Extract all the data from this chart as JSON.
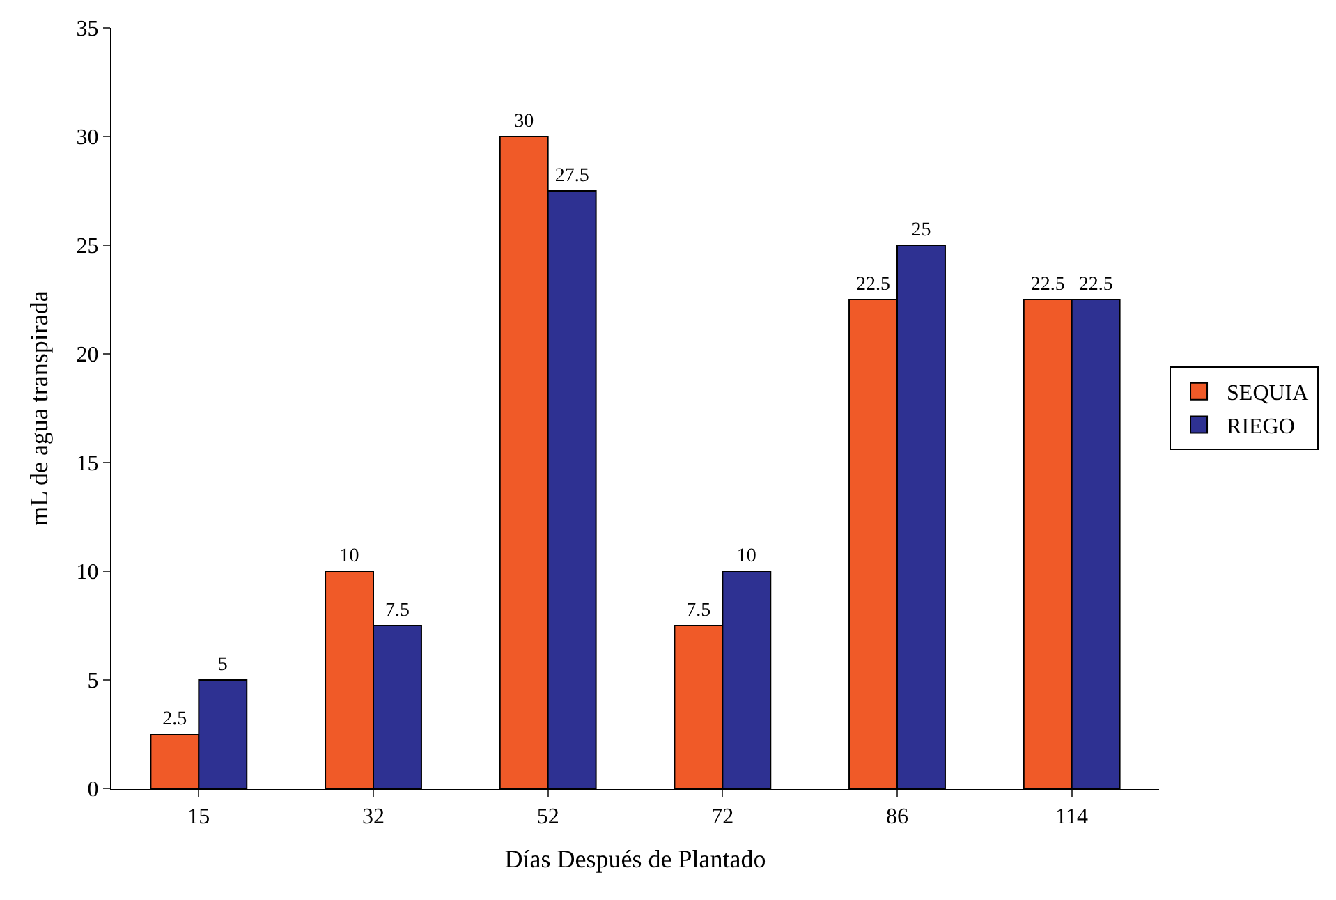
{
  "chart_data": {
    "type": "bar",
    "xlabel": "Días Después de Plantado",
    "ylabel": "mL de agua transpirada",
    "categories": [
      "15",
      "32",
      "52",
      "72",
      "86",
      "114"
    ],
    "series": [
      {
        "name": "SEQUIA",
        "color": "#f05a28",
        "values": [
          2.5,
          10,
          30,
          7.5,
          22.5,
          22.5
        ]
      },
      {
        "name": "RIEGO",
        "color": "#2e3192",
        "values": [
          5,
          7.5,
          27.5,
          10,
          25,
          22.5
        ]
      }
    ],
    "ylim": [
      0,
      35
    ],
    "yticks": [
      0,
      5,
      10,
      15,
      20,
      25,
      30,
      35
    ],
    "legend": "right",
    "data_labels": true
  }
}
